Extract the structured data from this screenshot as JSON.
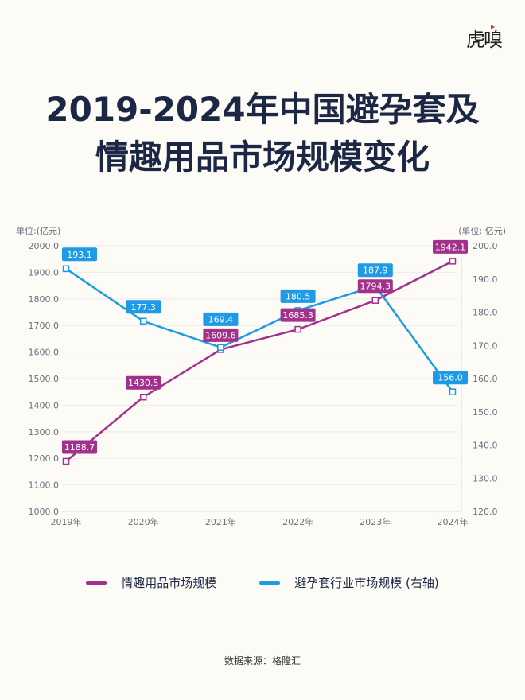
{
  "logo": "虎嗅",
  "title_lines": [
    "2019-2024年中国避孕套及",
    "情趣用品市场规模变化"
  ],
  "source": "数据来源：格隆汇",
  "colors": {
    "series1": "#a3318c",
    "series2": "#1d9be6",
    "title": "#1b2744",
    "background": "#fdfbf5"
  },
  "chart_data": {
    "type": "line",
    "categories": [
      "2019年",
      "2020年",
      "2021年",
      "2022年",
      "2023年",
      "2024年"
    ],
    "left_axis": {
      "label": "单位:(亿元)",
      "ylim": [
        1000,
        2000
      ],
      "ticks": [
        "1000.0",
        "1100.0",
        "1200.0",
        "1300.0",
        "1400.0",
        "1500.0",
        "1600.0",
        "1700.0",
        "1800.0",
        "1900.0",
        "2000.0"
      ]
    },
    "right_axis": {
      "label": "(单位: 亿元)",
      "ylim": [
        120,
        200
      ],
      "ticks": [
        "120.0",
        "130.0",
        "140.0",
        "150.0",
        "160.0",
        "170.0",
        "180.0",
        "190.0",
        "200.0"
      ]
    },
    "grid": true,
    "legend_placement": "bottom",
    "series": [
      {
        "name": "情趣用品市场规模",
        "axis": "left",
        "values": [
          1188.7,
          1430.5,
          1609.6,
          1685.3,
          1794.3,
          1942.1
        ],
        "labels": [
          "1188.7",
          "1430.5",
          "1609.6",
          "1685.3",
          "1794.3",
          "1942.1"
        ]
      },
      {
        "name": "避孕套行业市场规模 (右轴)",
        "axis": "right",
        "values": [
          193.1,
          177.3,
          169.4,
          180.5,
          187.9,
          156.0
        ],
        "labels": [
          "193.1",
          "177.3",
          "169.4",
          "180.5",
          "187.9",
          "156.0"
        ]
      }
    ]
  }
}
